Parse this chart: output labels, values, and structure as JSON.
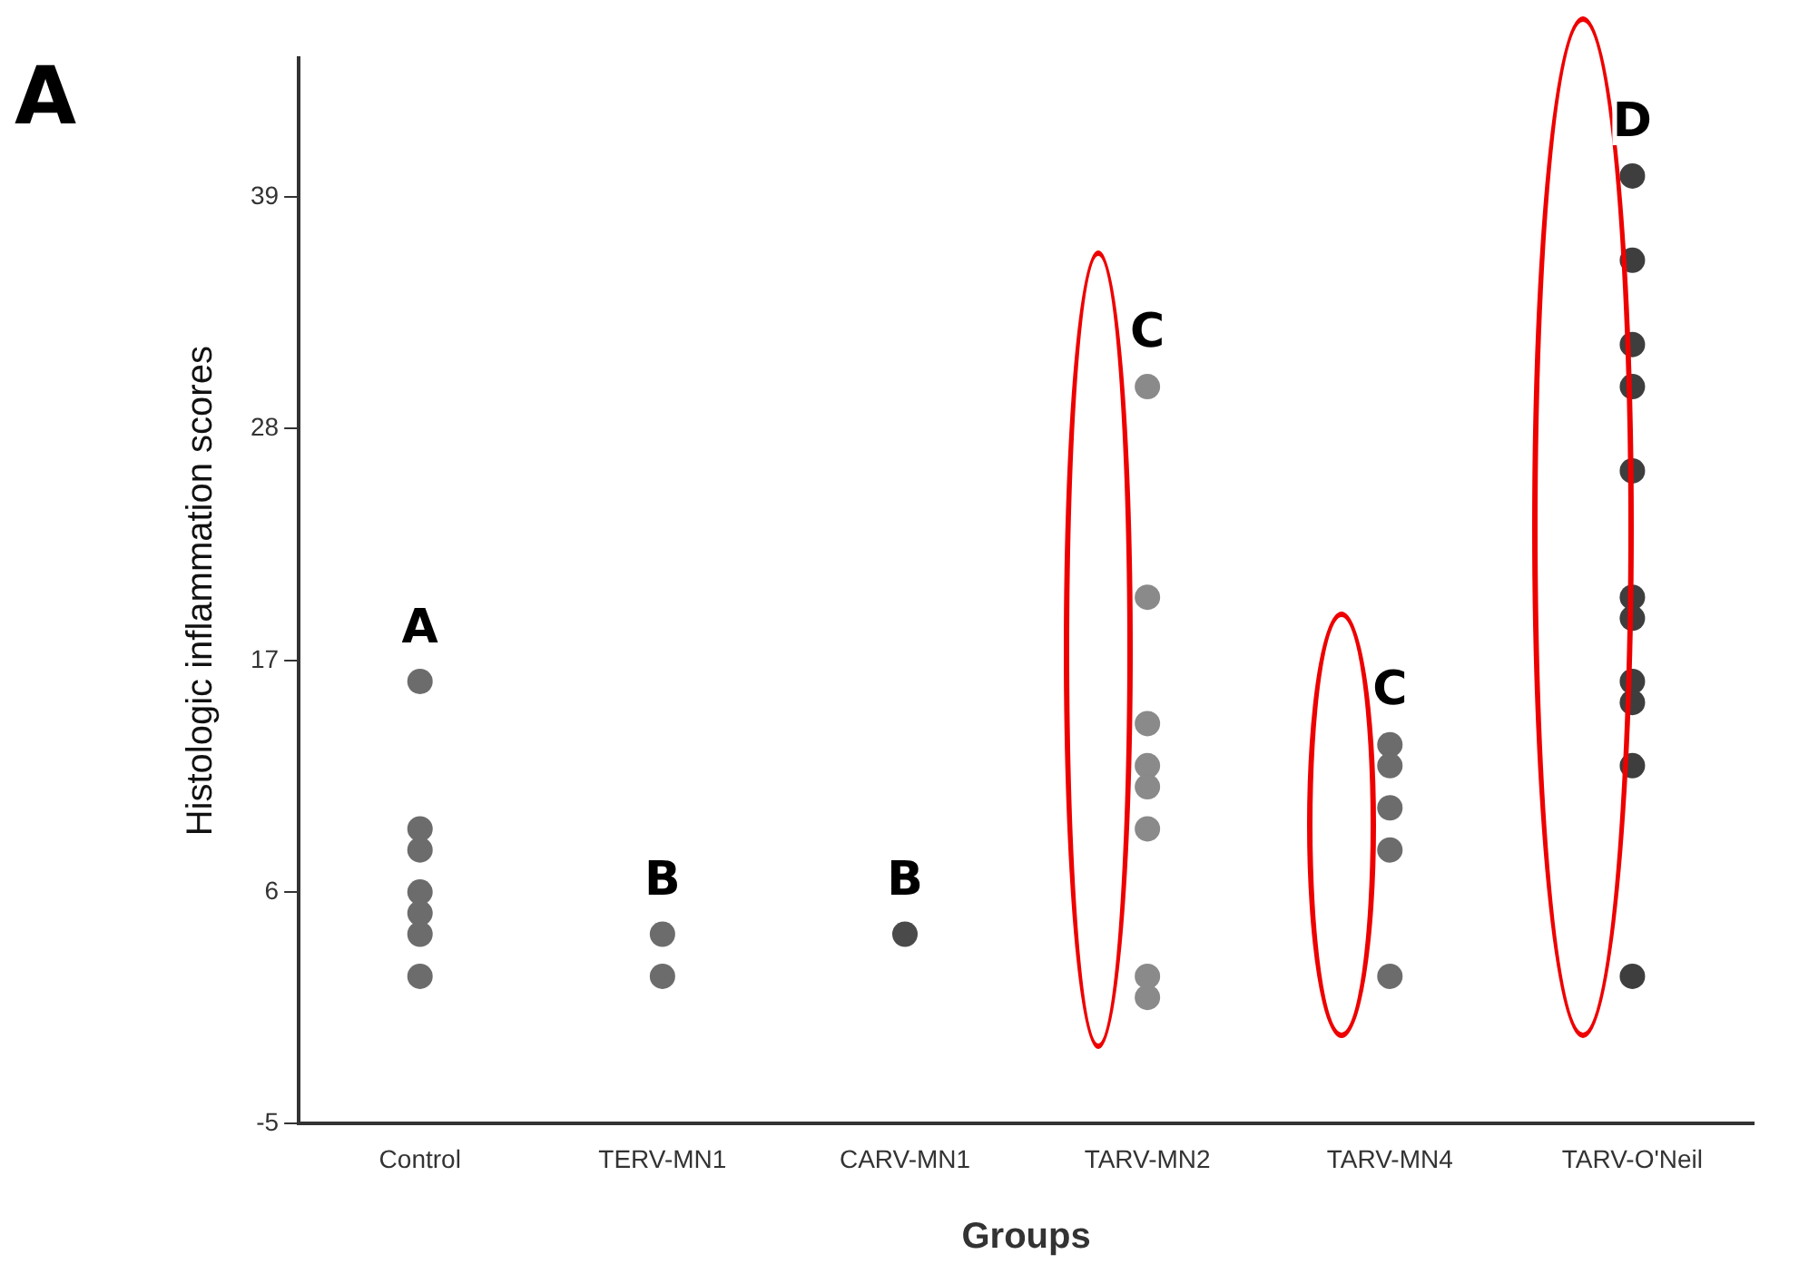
{
  "chart_data": {
    "type": "scatter",
    "xlabel": "Groups",
    "ylabel": "Histologic inflammation scores",
    "categories": [
      "Control",
      "TERV-MN1",
      "CARV-MN1",
      "TARV-MN2",
      "TARV-MN4",
      "TARV-O'Neil"
    ],
    "series": [
      {
        "x": [
          "Control",
          "Control",
          "Control",
          "Control",
          "Control",
          "Control",
          "Control"
        ],
        "values": [
          16,
          9,
          8,
          6,
          5,
          4,
          2
        ],
        "color": "#6c6c6c"
      },
      {
        "x": [
          "TERV-MN1",
          "TERV-MN1"
        ],
        "values": [
          4,
          2
        ],
        "color": "#6c6c6c"
      },
      {
        "x": [
          "CARV-MN1"
        ],
        "values": [
          4
        ],
        "color": "#4a4a4a"
      },
      {
        "x": [
          "TARV-MN2",
          "TARV-MN2",
          "TARV-MN2",
          "TARV-MN2",
          "TARV-MN2",
          "TARV-MN2",
          "TARV-MN2",
          "TARV-MN2"
        ],
        "values": [
          30,
          20,
          14,
          12,
          11,
          9,
          2,
          1
        ],
        "color": "#8a8a8a"
      },
      {
        "x": [
          "TARV-MN4",
          "TARV-MN4",
          "TARV-MN4",
          "TARV-MN4",
          "TARV-MN4"
        ],
        "values": [
          13,
          12,
          10,
          8,
          2
        ],
        "color": "#6c6c6c"
      },
      {
        "x": [
          "TARV-O'Neil",
          "TARV-O'Neil",
          "TARV-O'Neil",
          "TARV-O'Neil",
          "TARV-O'Neil",
          "TARV-O'Neil",
          "TARV-O'Neil",
          "TARV-O'Neil",
          "TARV-O'Neil",
          "TARV-O'Neil",
          "TARV-O'Neil"
        ],
        "values": [
          40,
          36,
          32,
          30,
          26,
          20,
          19,
          16,
          15,
          12,
          2
        ],
        "color": "#3e3e3e"
      }
    ],
    "ylim": [
      -5,
      45.6
    ],
    "yticks": [
      -5,
      6,
      17,
      28,
      39
    ],
    "grid": false,
    "legend": false,
    "marker": "circle",
    "annotations": [
      "A",
      "A",
      "B",
      "B",
      "C",
      "C",
      "D"
    ]
  }
}
